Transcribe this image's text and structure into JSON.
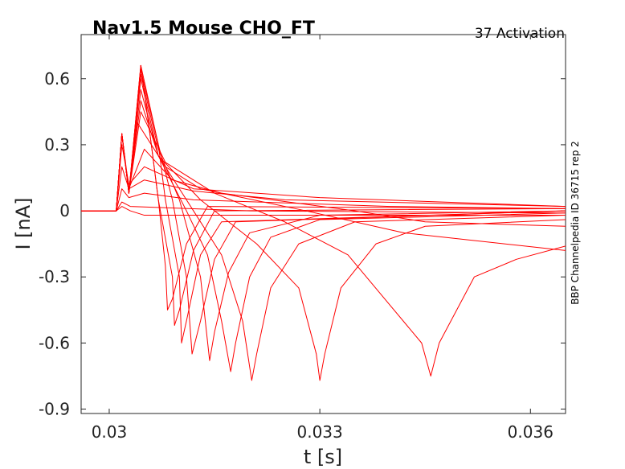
{
  "chart_data": {
    "type": "line",
    "title": "Nav1.5  Mouse  CHO_FT",
    "subtitle": "37  Activation",
    "side_label": "BBP Channelpedia ID 36715 rep 2",
    "xlabel": "t [s]",
    "ylabel": "I [nA]",
    "xlim": [
      0.0296,
      0.0365
    ],
    "ylim": [
      -0.92,
      0.8
    ],
    "xticks": [
      0.03,
      0.033,
      0.036
    ],
    "xtick_labels": [
      "0.03",
      "0.033",
      "0.036"
    ],
    "yticks": [
      0.6,
      0.3,
      0,
      -0.3,
      -0.6,
      -0.9
    ],
    "ytick_labels": [
      "0.6",
      "0.3",
      "0",
      "-0.3",
      "-0.6",
      "-0.9"
    ],
    "grid": false,
    "line_color": "#ff0000",
    "series": [
      {
        "values": [
          [
            0.0296,
            0.0
          ],
          [
            0.0301,
            0.0
          ],
          [
            0.03018,
            0.02
          ],
          [
            0.0303,
            0.0
          ],
          [
            0.0305,
            -0.02
          ],
          [
            0.032,
            -0.02
          ],
          [
            0.0365,
            -0.02
          ]
        ]
      },
      {
        "values": [
          [
            0.0296,
            0.0
          ],
          [
            0.0301,
            0.0
          ],
          [
            0.03018,
            0.04
          ],
          [
            0.0303,
            0.02
          ],
          [
            0.032,
            0.0
          ],
          [
            0.0365,
            -0.01
          ]
        ]
      },
      {
        "values": [
          [
            0.0296,
            0.0
          ],
          [
            0.0301,
            0.0
          ],
          [
            0.03018,
            0.1
          ],
          [
            0.03028,
            0.06
          ],
          [
            0.0305,
            0.08
          ],
          [
            0.0312,
            0.05
          ],
          [
            0.034,
            0.02
          ],
          [
            0.0365,
            0.01
          ]
        ]
      },
      {
        "values": [
          [
            0.0296,
            0.0
          ],
          [
            0.0301,
            0.0
          ],
          [
            0.03018,
            0.2
          ],
          [
            0.03028,
            0.1
          ],
          [
            0.0305,
            0.14
          ],
          [
            0.0312,
            0.09
          ],
          [
            0.0325,
            0.05
          ],
          [
            0.0365,
            0.02
          ]
        ]
      },
      {
        "values": [
          [
            0.0296,
            0.0
          ],
          [
            0.0301,
            0.0
          ],
          [
            0.03018,
            0.3
          ],
          [
            0.03028,
            0.12
          ],
          [
            0.0305,
            0.2
          ],
          [
            0.0312,
            0.1
          ],
          [
            0.033,
            0.06
          ],
          [
            0.0365,
            0.02
          ]
        ]
      },
      {
        "values": [
          [
            0.0296,
            0.0
          ],
          [
            0.0301,
            0.0
          ],
          [
            0.03018,
            0.35
          ],
          [
            0.03028,
            0.1
          ],
          [
            0.0305,
            0.28
          ],
          [
            0.0309,
            0.14
          ],
          [
            0.0316,
            0.08
          ],
          [
            0.0335,
            0.0
          ],
          [
            0.0345,
            -0.05
          ],
          [
            0.0365,
            -0.07
          ]
        ]
      },
      {
        "values": [
          [
            0.0296,
            0.0
          ],
          [
            0.0301,
            0.0
          ],
          [
            0.03018,
            0.35
          ],
          [
            0.03028,
            0.08
          ],
          [
            0.0304,
            0.4
          ],
          [
            0.0308,
            0.2
          ],
          [
            0.0313,
            0.1
          ],
          [
            0.0328,
            0.0
          ],
          [
            0.0342,
            -0.1
          ],
          [
            0.0365,
            -0.18
          ]
        ]
      },
      {
        "values": [
          [
            0.0296,
            0.0
          ],
          [
            0.0301,
            0.0
          ],
          [
            0.03018,
            0.35
          ],
          [
            0.03028,
            0.08
          ],
          [
            0.03045,
            0.45
          ],
          [
            0.0308,
            0.22
          ],
          [
            0.0315,
            0.08
          ],
          [
            0.0325,
            -0.05
          ],
          [
            0.0334,
            -0.2
          ],
          [
            0.03445,
            -0.6
          ],
          [
            0.03458,
            -0.75
          ],
          [
            0.0347,
            -0.6
          ],
          [
            0.0352,
            -0.3
          ],
          [
            0.0358,
            -0.22
          ],
          [
            0.0365,
            -0.16
          ]
        ]
      },
      {
        "values": [
          [
            0.0296,
            0.0
          ],
          [
            0.0301,
            0.0
          ],
          [
            0.03018,
            0.35
          ],
          [
            0.03028,
            0.08
          ],
          [
            0.03045,
            0.5
          ],
          [
            0.0307,
            0.25
          ],
          [
            0.0313,
            0.05
          ],
          [
            0.0321,
            -0.15
          ],
          [
            0.0327,
            -0.35
          ],
          [
            0.03295,
            -0.65
          ],
          [
            0.033,
            -0.77
          ],
          [
            0.03307,
            -0.65
          ],
          [
            0.0333,
            -0.35
          ],
          [
            0.0338,
            -0.15
          ],
          [
            0.0345,
            -0.07
          ],
          [
            0.0365,
            -0.04
          ]
        ]
      },
      {
        "values": [
          [
            0.0296,
            0.0
          ],
          [
            0.0301,
            0.0
          ],
          [
            0.03018,
            0.35
          ],
          [
            0.03028,
            0.08
          ],
          [
            0.03045,
            0.55
          ],
          [
            0.0307,
            0.25
          ],
          [
            0.0312,
            0.0
          ],
          [
            0.0316,
            -0.2
          ],
          [
            0.0319,
            -0.5
          ],
          [
            0.03203,
            -0.77
          ],
          [
            0.0321,
            -0.65
          ],
          [
            0.0323,
            -0.35
          ],
          [
            0.0327,
            -0.15
          ],
          [
            0.0335,
            -0.05
          ],
          [
            0.0365,
            -0.02
          ]
        ]
      },
      {
        "values": [
          [
            0.0296,
            0.0
          ],
          [
            0.0301,
            0.0
          ],
          [
            0.03018,
            0.35
          ],
          [
            0.03028,
            0.08
          ],
          [
            0.03045,
            0.6
          ],
          [
            0.0307,
            0.25
          ],
          [
            0.0311,
            0.0
          ],
          [
            0.0314,
            -0.2
          ],
          [
            0.0316,
            -0.5
          ],
          [
            0.03173,
            -0.73
          ],
          [
            0.0318,
            -0.6
          ],
          [
            0.032,
            -0.3
          ],
          [
            0.0323,
            -0.12
          ],
          [
            0.033,
            -0.04
          ],
          [
            0.0365,
            -0.01
          ]
        ]
      },
      {
        "values": [
          [
            0.0296,
            0.0
          ],
          [
            0.0301,
            0.0
          ],
          [
            0.03018,
            0.35
          ],
          [
            0.03028,
            0.08
          ],
          [
            0.03045,
            0.62
          ],
          [
            0.0307,
            0.28
          ],
          [
            0.031,
            0.05
          ],
          [
            0.0313,
            -0.3
          ],
          [
            0.03143,
            -0.68
          ],
          [
            0.0315,
            -0.55
          ],
          [
            0.0317,
            -0.28
          ],
          [
            0.032,
            -0.1
          ],
          [
            0.033,
            -0.02
          ],
          [
            0.0365,
            0.0
          ]
        ]
      },
      {
        "values": [
          [
            0.0296,
            0.0
          ],
          [
            0.0301,
            0.0
          ],
          [
            0.03018,
            0.35
          ],
          [
            0.03028,
            0.08
          ],
          [
            0.03045,
            0.64
          ],
          [
            0.0307,
            0.3
          ],
          [
            0.0309,
            0.05
          ],
          [
            0.0311,
            -0.3
          ],
          [
            0.03118,
            -0.65
          ],
          [
            0.0313,
            -0.5
          ],
          [
            0.0315,
            -0.22
          ],
          [
            0.0318,
            -0.05
          ],
          [
            0.0365,
            0.0
          ]
        ]
      },
      {
        "values": [
          [
            0.0296,
            0.0
          ],
          [
            0.0301,
            0.0
          ],
          [
            0.03018,
            0.35
          ],
          [
            0.03028,
            0.08
          ],
          [
            0.03045,
            0.66
          ],
          [
            0.0307,
            0.3
          ],
          [
            0.0308,
            0.05
          ],
          [
            0.031,
            -0.3
          ],
          [
            0.03103,
            -0.6
          ],
          [
            0.0311,
            -0.5
          ],
          [
            0.0313,
            -0.2
          ],
          [
            0.0316,
            -0.05
          ],
          [
            0.0365,
            0.0
          ]
        ]
      },
      {
        "values": [
          [
            0.0296,
            0.0
          ],
          [
            0.0301,
            0.0
          ],
          [
            0.03018,
            0.35
          ],
          [
            0.03028,
            0.08
          ],
          [
            0.03045,
            0.66
          ],
          [
            0.0306,
            0.3
          ],
          [
            0.0307,
            0.05
          ],
          [
            0.0309,
            -0.3
          ],
          [
            0.03093,
            -0.52
          ],
          [
            0.031,
            -0.45
          ],
          [
            0.0312,
            -0.18
          ],
          [
            0.0315,
            0.0
          ],
          [
            0.0365,
            0.01
          ]
        ]
      },
      {
        "values": [
          [
            0.0296,
            0.0
          ],
          [
            0.0301,
            0.0
          ],
          [
            0.03018,
            0.35
          ],
          [
            0.03028,
            0.08
          ],
          [
            0.03045,
            0.66
          ],
          [
            0.0306,
            0.3
          ],
          [
            0.0307,
            0.05
          ],
          [
            0.0308,
            -0.25
          ],
          [
            0.03083,
            -0.45
          ],
          [
            0.0309,
            -0.4
          ],
          [
            0.0311,
            -0.15
          ],
          [
            0.0314,
            0.02
          ],
          [
            0.0365,
            0.01
          ]
        ]
      }
    ]
  }
}
